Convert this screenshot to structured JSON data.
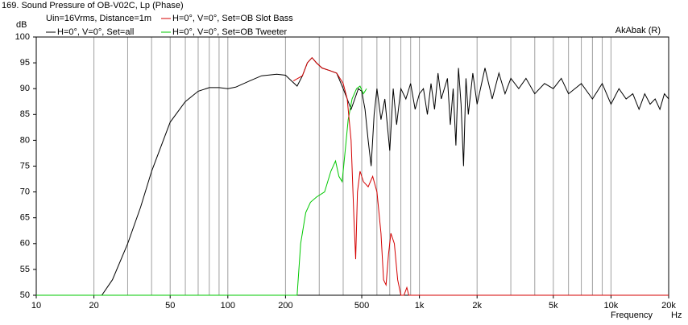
{
  "chart_data": {
    "type": "line",
    "title": "169. Sound Pressure of OB-V02C, Lp (Phase)",
    "subtitle": "Uin=16Vrms, Distance=1m",
    "annotation": "AkAbak (R)",
    "y_label": "dB",
    "x_label": "Frequency",
    "x_unit": "Hz",
    "x_log": true,
    "xlim": [
      10,
      20000
    ],
    "ylim": [
      50,
      100
    ],
    "xticks": [
      10,
      20,
      50,
      100,
      200,
      500,
      {
        "value": 1000,
        "label": "1k"
      },
      {
        "value": 2000,
        "label": "2k"
      },
      {
        "value": 5000,
        "label": "5k"
      },
      {
        "value": 10000,
        "label": "10k"
      },
      {
        "value": 20000,
        "label": "20k"
      }
    ],
    "xgrid": [
      20,
      30,
      40,
      50,
      60,
      70,
      80,
      90,
      100,
      200,
      300,
      400,
      500,
      600,
      700,
      800,
      900,
      1000,
      2000,
      3000,
      4000,
      5000,
      6000,
      7000,
      8000,
      9000,
      10000
    ],
    "yticks": [
      50,
      55,
      60,
      65,
      70,
      75,
      80,
      85,
      90,
      95,
      100
    ],
    "series": [
      {
        "name": "H=0°, V=0°, Set=all",
        "color": "#000000",
        "x": [
          22,
          25,
          30,
          35,
          40,
          45,
          50,
          60,
          70,
          80,
          90,
          100,
          110,
          130,
          150,
          180,
          200,
          215,
          230,
          245,
          260,
          275,
          290,
          310,
          340,
          370,
          400,
          420,
          440,
          460,
          480,
          500,
          520,
          540,
          560,
          580,
          600,
          630,
          660,
          700,
          730,
          760,
          800,
          850,
          900,
          950,
          1000,
          1050,
          1100,
          1150,
          1200,
          1250,
          1300,
          1400,
          1450,
          1500,
          1550,
          1600,
          1650,
          1700,
          1750,
          1800,
          1900,
          2000,
          2200,
          2400,
          2600,
          2800,
          3000,
          3300,
          3600,
          4000,
          4500,
          5000,
          5500,
          6000,
          7000,
          8000,
          9000,
          10000,
          11000,
          12000,
          13000,
          14000,
          15000,
          16000,
          17000,
          18000,
          19000,
          20000
        ],
        "values": [
          50,
          53,
          60,
          67,
          74,
          79,
          83.5,
          87.5,
          89.5,
          90.2,
          90.2,
          90,
          90.3,
          91.5,
          92.5,
          92.8,
          92.6,
          91.5,
          90.5,
          92.5,
          95,
          96,
          95,
          94,
          93.5,
          93,
          90,
          88,
          86,
          88,
          90,
          89.5,
          86,
          80,
          75,
          85,
          90,
          84,
          88,
          78,
          90,
          83,
          90,
          88,
          91,
          86,
          89,
          90,
          85,
          91,
          86,
          93,
          88,
          92,
          83,
          90,
          79,
          94,
          87,
          75,
          92,
          85,
          93,
          87,
          94,
          88,
          93,
          89,
          92,
          90,
          92,
          89,
          91,
          90,
          92,
          89,
          91,
          88,
          91,
          87,
          90,
          88,
          89,
          86,
          89,
          87,
          88,
          86,
          89,
          88
        ]
      },
      {
        "name": "H=0°, V=0°, Set=OB Tweeter",
        "color": "#00c800",
        "x": [
          10,
          230,
          240,
          255,
          270,
          290,
          320,
          345,
          365,
          380,
          395,
          410,
          425,
          445,
          470,
          490,
          510,
          530
        ],
        "values": [
          50,
          50,
          60,
          66,
          68,
          69,
          70,
          74,
          76,
          73,
          72,
          78,
          84,
          88,
          90,
          90.5,
          89,
          90
        ]
      },
      {
        "name": "H=0°, V=0°, Set=OB Slot Bass",
        "color": "#d40000",
        "x": [
          220,
          245,
          260,
          275,
          290,
          310,
          340,
          370,
          400,
          420,
          440,
          455,
          465,
          475,
          490,
          510,
          540,
          570,
          600,
          630,
          650,
          670,
          690,
          710,
          740,
          770,
          800,
          830,
          860,
          880,
          900,
          1000,
          20000
        ],
        "values": [
          91.5,
          92.5,
          95,
          96,
          95,
          94,
          93.5,
          93,
          91,
          88,
          80,
          65,
          57,
          70,
          74,
          72,
          71,
          73,
          70,
          62,
          53,
          52,
          58,
          62,
          60,
          53,
          50,
          50,
          51.5,
          50,
          50,
          50,
          50
        ]
      }
    ]
  }
}
